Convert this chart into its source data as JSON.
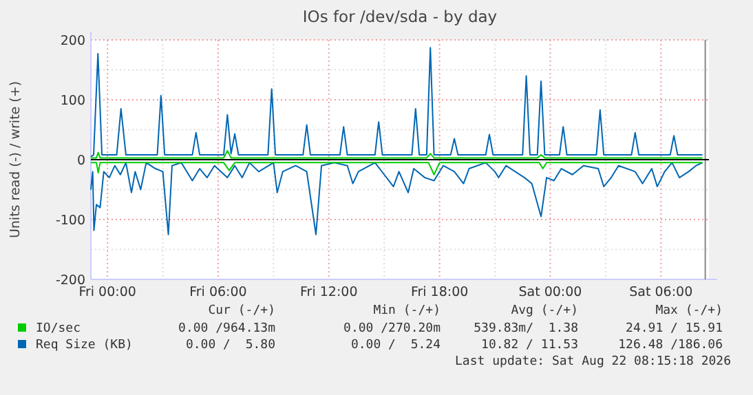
{
  "chart_data": {
    "type": "line",
    "title": "IOs for /dev/sda - by day",
    "ylabel": "Units read (-) / write (+)",
    "xlim": [
      "2026-08-20T23:06",
      "2026-08-22T08:36"
    ],
    "xticks": [
      {
        "value": "2026-08-21T00:00",
        "label": "Fri 00:00"
      },
      {
        "value": "2026-08-21T03:00",
        "label": null
      },
      {
        "value": "2026-08-21T06:00",
        "label": "Fri 06:00"
      },
      {
        "value": "2026-08-21T09:00",
        "label": null
      },
      {
        "value": "2026-08-21T12:00",
        "label": "Fri 12:00"
      },
      {
        "value": "2026-08-21T15:00",
        "label": null
      },
      {
        "value": "2026-08-21T18:00",
        "label": "Fri 18:00"
      },
      {
        "value": "2026-08-21T21:00",
        "label": null
      },
      {
        "value": "2026-08-22T00:00",
        "label": "Sat 00:00"
      },
      {
        "value": "2026-08-22T03:00",
        "label": null
      },
      {
        "value": "2026-08-22T06:00",
        "label": "Sat 06:00"
      }
    ],
    "ylim": [
      -200,
      200
    ],
    "yticks": [
      -200,
      {
        "value": -150,
        "label": null
      },
      -100,
      {
        "value": -50,
        "label": null
      },
      0,
      {
        "value": 50,
        "label": null
      },
      100,
      {
        "value": 150,
        "label": null
      },
      200
    ],
    "grid": true,
    "legend": "bottom",
    "ref_lines": [
      {
        "axis": "y",
        "value": 0,
        "color": "#000000"
      },
      {
        "axis": "x",
        "value": "2026-08-22T08:24",
        "color": "#888888"
      }
    ],
    "series": [
      {
        "name": "IO/sec",
        "color": "#00cc00",
        "x": [
          "2026-08-20T23:06",
          "2026-08-20T23:24",
          "2026-08-20T23:30",
          "2026-08-20T23:36",
          "2026-08-21T06:18",
          "2026-08-21T06:30",
          "2026-08-21T06:42",
          "2026-08-21T17:18",
          "2026-08-21T17:30",
          "2026-08-21T17:42",
          "2026-08-21T23:18",
          "2026-08-21T23:30",
          "2026-08-21T23:42",
          "2026-08-22T08:15"
        ],
        "values": [
          3,
          3,
          12,
          3,
          3,
          15,
          3,
          3,
          10,
          3,
          3,
          8,
          3,
          3
        ]
      },
      {
        "color": "#00cc00",
        "x": [
          "2026-08-20T23:06",
          "2026-08-20T23:24",
          "2026-08-20T23:30",
          "2026-08-20T23:36",
          "2026-08-21T06:18",
          "2026-08-21T06:36",
          "2026-08-21T06:54",
          "2026-08-21T17:24",
          "2026-08-21T17:42",
          "2026-08-21T18:00",
          "2026-08-21T23:24",
          "2026-08-21T23:36",
          "2026-08-21T23:48",
          "2026-08-22T08:15"
        ],
        "values": [
          -5,
          -5,
          -22,
          -5,
          -5,
          -18,
          -5,
          -5,
          -25,
          -5,
          -5,
          -15,
          -5,
          -5
        ]
      },
      {
        "name": "Req Size (KB)",
        "color": "#0066b3",
        "x": [
          "2026-08-20T23:06",
          "2026-08-20T23:15",
          "2026-08-20T23:29",
          "2026-08-20T23:42",
          "2026-08-21T00:30",
          "2026-08-21T00:44",
          "2026-08-21T01:00",
          "2026-08-21T02:42",
          "2026-08-21T02:54",
          "2026-08-21T03:06",
          "2026-08-21T04:36",
          "2026-08-21T04:48",
          "2026-08-21T05:00",
          "2026-08-21T06:18",
          "2026-08-21T06:30",
          "2026-08-21T06:42",
          "2026-08-21T06:54",
          "2026-08-21T07:06",
          "2026-08-21T08:42",
          "2026-08-21T08:54",
          "2026-08-21T09:06",
          "2026-08-21T10:36",
          "2026-08-21T10:48",
          "2026-08-21T11:00",
          "2026-08-21T12:36",
          "2026-08-21T12:48",
          "2026-08-21T13:00",
          "2026-08-21T14:30",
          "2026-08-21T14:42",
          "2026-08-21T14:54",
          "2026-08-21T16:30",
          "2026-08-21T16:42",
          "2026-08-21T16:54",
          "2026-08-21T17:18",
          "2026-08-21T17:30",
          "2026-08-21T17:42",
          "2026-08-21T18:36",
          "2026-08-21T18:48",
          "2026-08-21T19:00",
          "2026-08-21T20:30",
          "2026-08-21T20:42",
          "2026-08-21T20:54",
          "2026-08-21T22:30",
          "2026-08-21T22:42",
          "2026-08-21T22:54",
          "2026-08-21T23:18",
          "2026-08-21T23:30",
          "2026-08-21T23:42",
          "2026-08-22T00:30",
          "2026-08-22T00:42",
          "2026-08-22T00:54",
          "2026-08-22T02:30",
          "2026-08-22T02:42",
          "2026-08-22T02:54",
          "2026-08-22T04:24",
          "2026-08-22T04:36",
          "2026-08-22T04:48",
          "2026-08-22T06:30",
          "2026-08-22T06:42",
          "2026-08-22T06:54",
          "2026-08-22T08:15"
        ],
        "values": [
          5,
          8,
          177,
          8,
          8,
          85,
          8,
          8,
          107,
          8,
          8,
          45,
          8,
          8,
          75,
          10,
          43,
          8,
          8,
          118,
          8,
          8,
          58,
          8,
          8,
          55,
          8,
          8,
          63,
          8,
          8,
          85,
          8,
          8,
          187,
          8,
          8,
          35,
          8,
          8,
          42,
          8,
          8,
          140,
          8,
          8,
          131,
          8,
          8,
          55,
          8,
          8,
          83,
          8,
          8,
          45,
          8,
          8,
          40,
          8,
          8
        ]
      },
      {
        "color": "#0066b3",
        "x": [
          "2026-08-20T23:06",
          "2026-08-20T23:12",
          "2026-08-20T23:16",
          "2026-08-20T23:24",
          "2026-08-20T23:36",
          "2026-08-20T23:48",
          "2026-08-21T00:06",
          "2026-08-21T00:24",
          "2026-08-21T00:42",
          "2026-08-21T01:00",
          "2026-08-21T01:18",
          "2026-08-21T01:30",
          "2026-08-21T01:48",
          "2026-08-21T02:06",
          "2026-08-21T02:36",
          "2026-08-21T03:00",
          "2026-08-21T03:18",
          "2026-08-21T03:30",
          "2026-08-21T04:00",
          "2026-08-21T04:36",
          "2026-08-21T05:00",
          "2026-08-21T05:24",
          "2026-08-21T05:48",
          "2026-08-21T06:30",
          "2026-08-21T06:54",
          "2026-08-21T07:18",
          "2026-08-21T07:42",
          "2026-08-21T08:12",
          "2026-08-21T09:00",
          "2026-08-21T09:12",
          "2026-08-21T09:30",
          "2026-08-21T10:12",
          "2026-08-21T10:48",
          "2026-08-21T11:18",
          "2026-08-21T11:36",
          "2026-08-21T12:18",
          "2026-08-21T13:00",
          "2026-08-21T13:18",
          "2026-08-21T13:36",
          "2026-08-21T14:30",
          "2026-08-21T15:00",
          "2026-08-21T15:30",
          "2026-08-21T15:48",
          "2026-08-21T16:18",
          "2026-08-21T16:36",
          "2026-08-21T17:12",
          "2026-08-21T17:42",
          "2026-08-21T18:12",
          "2026-08-21T18:48",
          "2026-08-21T19:18",
          "2026-08-21T19:36",
          "2026-08-21T20:30",
          "2026-08-21T21:00",
          "2026-08-21T21:12",
          "2026-08-21T21:36",
          "2026-08-21T22:36",
          "2026-08-21T23:00",
          "2026-08-21T23:30",
          "2026-08-21T23:48",
          "2026-08-22T00:12",
          "2026-08-22T00:36",
          "2026-08-22T01:12",
          "2026-08-22T01:48",
          "2026-08-22T02:36",
          "2026-08-22T02:54",
          "2026-08-22T03:18",
          "2026-08-22T03:42",
          "2026-08-22T04:36",
          "2026-08-22T05:00",
          "2026-08-22T05:30",
          "2026-08-22T05:48",
          "2026-08-22T06:12",
          "2026-08-22T06:36",
          "2026-08-22T07:00",
          "2026-08-22T07:30",
          "2026-08-22T07:54",
          "2026-08-22T08:15"
        ],
        "values": [
          -50,
          -20,
          -118,
          -75,
          -80,
          -20,
          -30,
          -10,
          -25,
          -5,
          -55,
          -20,
          -50,
          -5,
          -15,
          -20,
          -125,
          -10,
          -5,
          -35,
          -15,
          -30,
          -10,
          -30,
          -10,
          -30,
          -5,
          -20,
          -5,
          -55,
          -20,
          -10,
          -20,
          -125,
          -10,
          -5,
          -10,
          -40,
          -20,
          -5,
          -25,
          -45,
          -20,
          -55,
          -15,
          -30,
          -35,
          -10,
          -20,
          -40,
          -15,
          -5,
          -20,
          -30,
          -10,
          -30,
          -40,
          -95,
          -30,
          -35,
          -15,
          -25,
          -10,
          -15,
          -45,
          -30,
          -10,
          -20,
          -40,
          -15,
          -45,
          -20,
          -5,
          -30,
          -20,
          -10,
          -5
        ]
      }
    ],
    "annotations": [
      "Cur (-/+)",
      "Min (-/+)",
      "Avg (-/+)",
      "Max (-/+)",
      "0.00 /964.13m",
      "0.00 /270.20m",
      "539.83m/  1.38",
      "24.91 / 15.91",
      "0.00 /  5.80",
      "0.00 /  5.24",
      "10.82 / 11.53",
      "126.48 /186.06",
      "Last update: Sat Aug 22 08:15:18 2026"
    ]
  }
}
